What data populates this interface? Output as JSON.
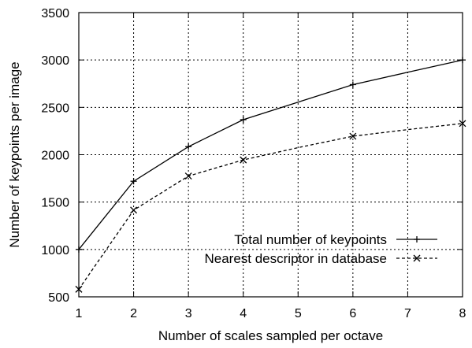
{
  "chart_data": {
    "type": "line",
    "title": "",
    "xlabel": "Number of scales sampled per octave",
    "ylabel": "Number of keypoints per image",
    "xlim": [
      1,
      8
    ],
    "ylim": [
      500,
      3500
    ],
    "xticks": [
      "1",
      "2",
      "3",
      "4",
      "5",
      "6",
      "7",
      "8"
    ],
    "yticks": [
      "500",
      "1000",
      "1500",
      "2000",
      "2500",
      "3000",
      "3500"
    ],
    "grid": true,
    "legend_position": "lower-right",
    "x": [
      1,
      2,
      3,
      4,
      5,
      6,
      7,
      8
    ],
    "series": [
      {
        "name": "Total number of keypoints",
        "marker": "plus",
        "line_style": "solid",
        "color": "#000000",
        "marker_x": [
          1,
          2,
          3,
          4,
          6,
          8
        ],
        "values": [
          1000,
          1720,
          2085,
          2370,
          2555,
          2740,
          2870,
          3000
        ]
      },
      {
        "name": "Nearest descriptor in database",
        "marker": "cross",
        "line_style": "dashed",
        "color": "#000000",
        "marker_x": [
          1,
          2,
          3,
          4,
          6,
          8
        ],
        "values": [
          580,
          1415,
          1775,
          1945,
          2075,
          2195,
          2265,
          2330
        ]
      }
    ]
  }
}
